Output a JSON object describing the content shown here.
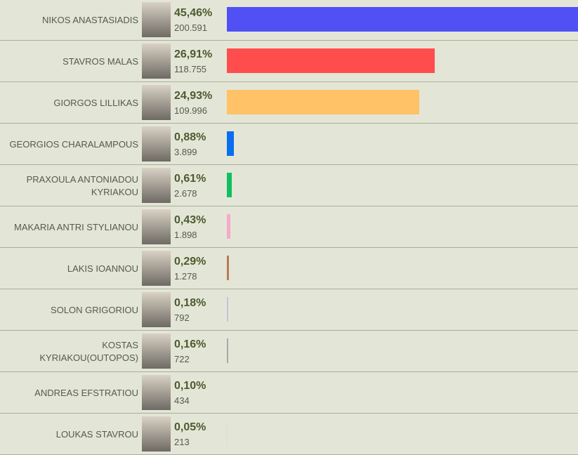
{
  "chart_data": {
    "type": "bar",
    "categories": [
      "NIKOS ANASTASIADIS",
      "STAVROS MALAS",
      "GIORGOS LILLIKAS",
      "GEORGIOS CHARALAMPOUS",
      "PRAXOULA ANTONIADOU KYRIAKOU",
      "MAKARIA ANTRI STYLIANOU",
      "LAKIS IOANNOU",
      "SOLON GRIGORIOU",
      "KOSTAS KYRIAKOU(OUTOPOS)",
      "ANDREAS EFSTRATIOU",
      "LOUKAS STAVROU"
    ],
    "values": [
      45.46,
      26.91,
      24.93,
      0.88,
      0.61,
      0.43,
      0.29,
      0.18,
      0.16,
      0.1,
      0.05
    ],
    "value_labels": [
      "45,46%",
      "26,91%",
      "24,93%",
      "0,88%",
      "0,61%",
      "0,43%",
      "0,29%",
      "0,18%",
      "0,16%",
      "0,10%",
      "0,05%"
    ],
    "votes": [
      200591,
      118755,
      109996,
      3899,
      2678,
      1898,
      1278,
      792,
      722,
      434,
      213
    ],
    "vote_labels": [
      "200.591",
      "118.755",
      "109.996",
      "3.899",
      "2.678",
      "1.898",
      "1.278",
      "792",
      "722",
      "434",
      "213"
    ],
    "colors": [
      "#5050f5",
      "#ff4d4d",
      "#ffc266",
      "#0a6ef0",
      "#10c060",
      "#f7a9c9",
      "#b97a55",
      "#c3c3e6",
      "#a8a8a8",
      "#e9dfc6",
      "#e0dccb"
    ]
  }
}
